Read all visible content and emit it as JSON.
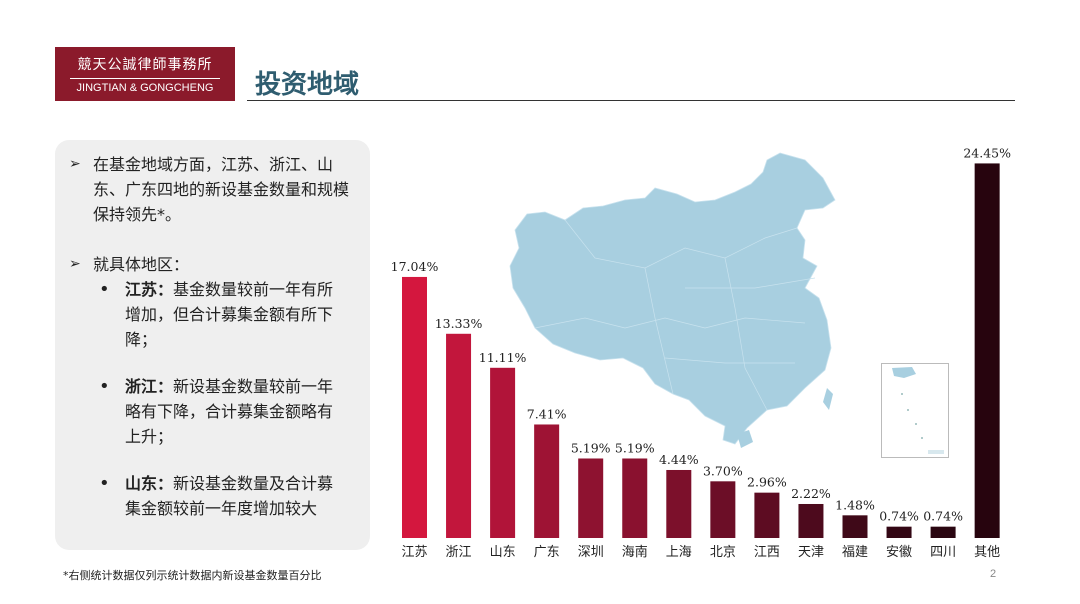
{
  "logo": {
    "cn": "競天公誠律師事務所",
    "en": "JINGTIAN & GONGCHENG"
  },
  "slide_title": "投资地域",
  "panel": {
    "p1": "在基金地域方面，江苏、浙江、山东、广东四地的新设基金数量和规模保持领先*。",
    "p2": "就具体地区：",
    "bullets": [
      {
        "head": "江苏：",
        "body": "基金数量较前一年有所增加，但合计募集金额有所下降；"
      },
      {
        "head": "浙江：",
        "body": "新设基金数量较前一年略有下降，合计募集金额略有上升；"
      },
      {
        "head": "山东：",
        "body": "新设基金数量及合计募集金额较前一年度增加较大"
      }
    ]
  },
  "footnote": "*右侧统计数据仅列示统计数据内新设基金数量百分比",
  "page_number": "2",
  "chart_data": {
    "type": "bar",
    "categories": [
      "江苏",
      "浙江",
      "山东",
      "广东",
      "深圳",
      "海南",
      "上海",
      "北京",
      "江西",
      "天津",
      "福建",
      "安徽",
      "四川",
      "其他"
    ],
    "values": [
      17.04,
      13.33,
      11.11,
      7.41,
      5.19,
      5.19,
      4.44,
      3.7,
      2.96,
      2.22,
      1.48,
      0.74,
      0.74,
      24.45
    ],
    "data_labels": [
      "17.04%",
      "13.33%",
      "11.11%",
      "7.41%",
      "5.19%",
      "5.19%",
      "4.44%",
      "3.70%",
      "2.96%",
      "2.22%",
      "1.48%",
      "0.74%",
      "0.74%",
      "24.45%"
    ],
    "colors": [
      "#d4173e",
      "#c2163c",
      "#b11439",
      "#9e1334",
      "#8e1230",
      "#8a112f",
      "#7c102b",
      "#6c0e27",
      "#5d0c22",
      "#4d0a1d",
      "#3f0918",
      "#330714",
      "#2a0611",
      "#27040e"
    ],
    "title": "",
    "xlabel": "",
    "ylabel": "",
    "ylim": [
      0,
      25
    ],
    "grid": false,
    "legend": "none"
  }
}
